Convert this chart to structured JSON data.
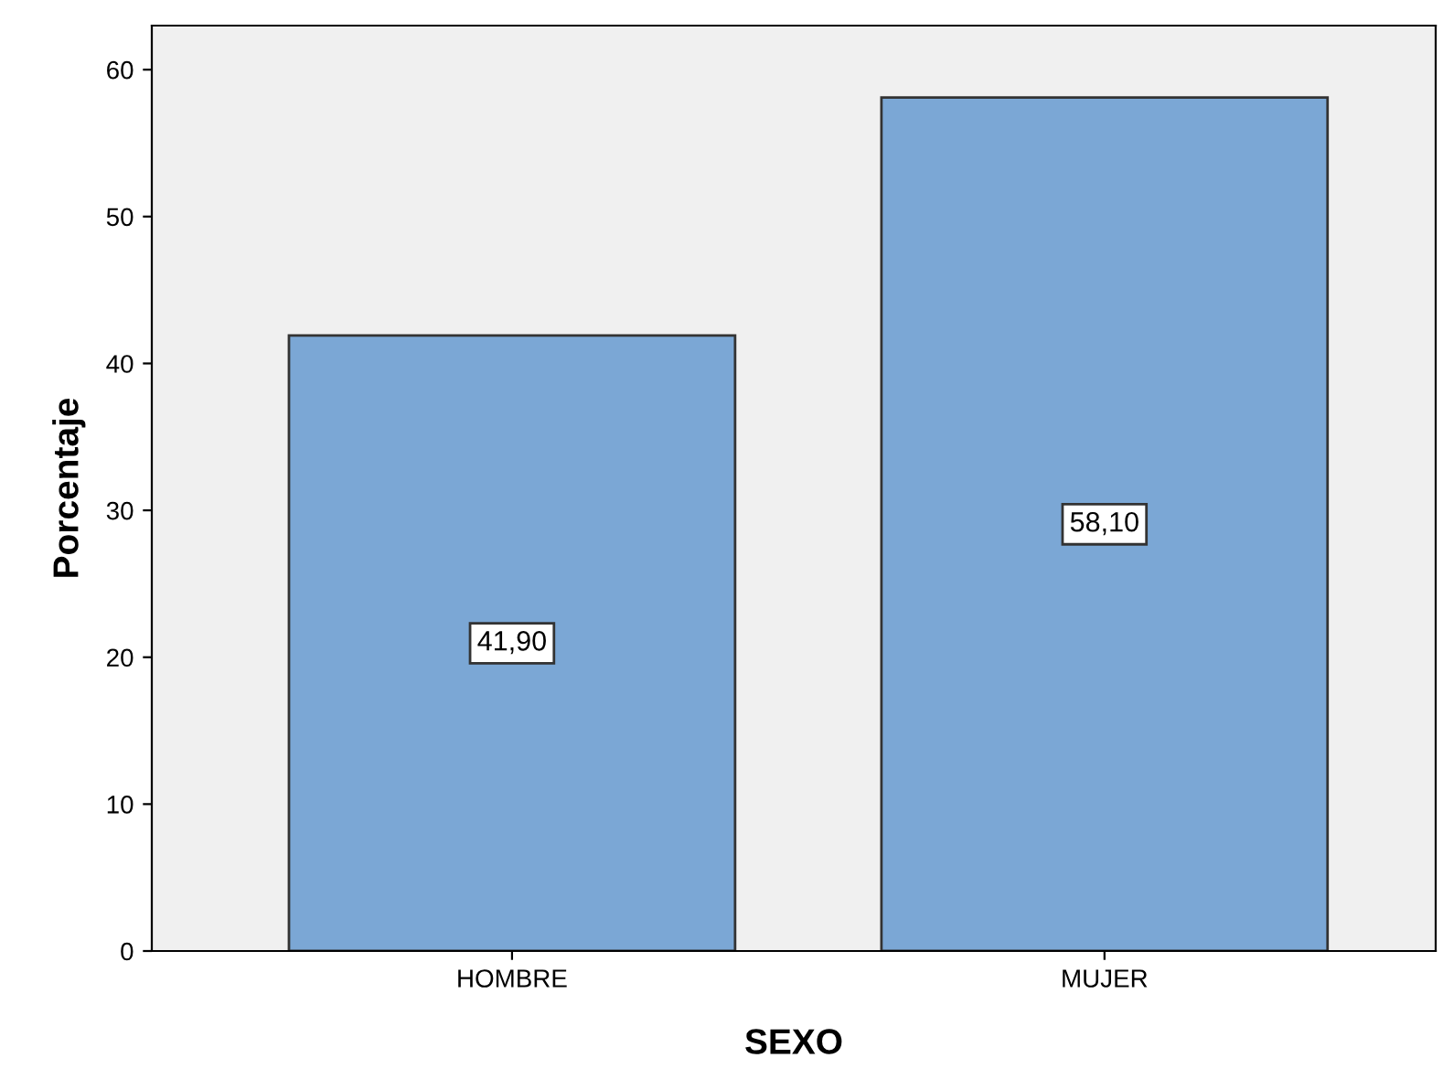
{
  "chart_data": {
    "type": "bar",
    "xlabel": "SEXO",
    "ylabel": "Porcentaje",
    "categories": [
      "HOMBRE",
      "MUJER"
    ],
    "values": [
      41.9,
      58.1
    ],
    "value_labels": [
      "41,90",
      "58,10"
    ],
    "color": "#7ba7d5",
    "ylim": [
      0,
      63
    ],
    "yticks": [
      0,
      10,
      20,
      30,
      40,
      50,
      60
    ],
    "grid": false,
    "legend": false
  }
}
